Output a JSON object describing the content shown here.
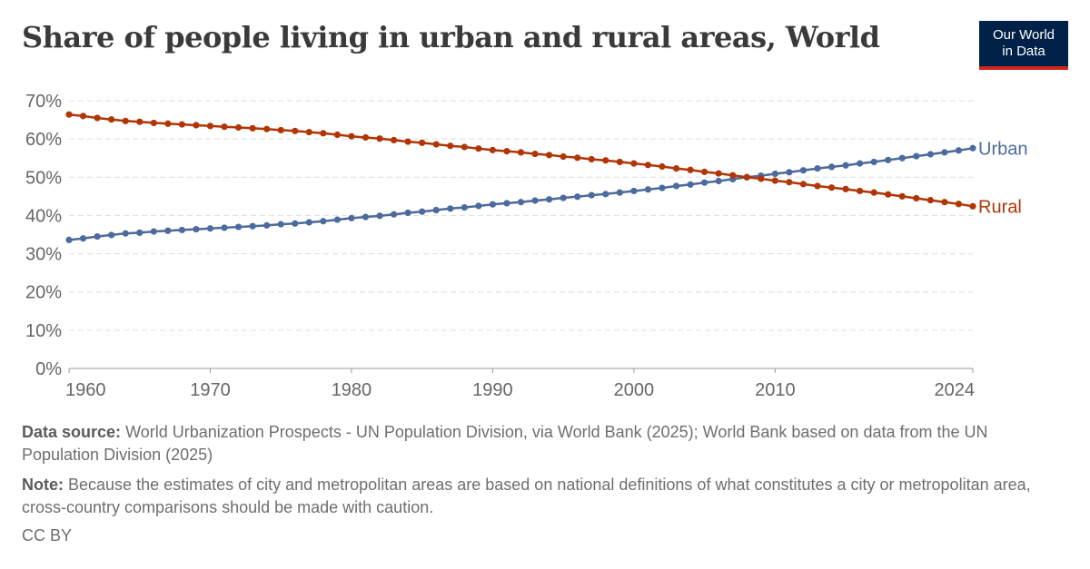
{
  "header": {
    "title": "Share of people living in urban and rural areas, World",
    "logo_line1": "Our World",
    "logo_line2": "in Data"
  },
  "footer": {
    "source_label": "Data source:",
    "source_text": "World Urbanization Prospects - UN Population Division, via World Bank (2025); World Bank based on data from the UN Population Division (2025)",
    "note_label": "Note:",
    "note_text": "Because the estimates of city and metropolitan areas are based on national definitions of what constitutes a city or metropolitan area, cross-country comparisons should be made with caution.",
    "license": "CC BY"
  },
  "colors": {
    "urban": "#4c6a9c",
    "rural": "#b13507",
    "grid": "#dddddd",
    "axis_text": "#666666"
  },
  "chart_data": {
    "type": "line",
    "x": [
      1960,
      1961,
      1962,
      1963,
      1964,
      1965,
      1966,
      1967,
      1968,
      1969,
      1970,
      1971,
      1972,
      1973,
      1974,
      1975,
      1976,
      1977,
      1978,
      1979,
      1980,
      1981,
      1982,
      1983,
      1984,
      1985,
      1986,
      1987,
      1988,
      1989,
      1990,
      1991,
      1992,
      1993,
      1994,
      1995,
      1996,
      1997,
      1998,
      1999,
      2000,
      2001,
      2002,
      2003,
      2004,
      2005,
      2006,
      2007,
      2008,
      2009,
      2010,
      2011,
      2012,
      2013,
      2014,
      2015,
      2016,
      2017,
      2018,
      2019,
      2020,
      2021,
      2022,
      2023,
      2024
    ],
    "series": [
      {
        "name": "Urban",
        "values": [
          33.6,
          34.0,
          34.5,
          34.9,
          35.3,
          35.5,
          35.8,
          36.0,
          36.2,
          36.4,
          36.6,
          36.8,
          37.0,
          37.2,
          37.4,
          37.7,
          37.9,
          38.2,
          38.5,
          38.9,
          39.3,
          39.6,
          39.9,
          40.3,
          40.7,
          41.0,
          41.4,
          41.8,
          42.1,
          42.5,
          42.9,
          43.2,
          43.5,
          43.9,
          44.2,
          44.6,
          44.9,
          45.3,
          45.6,
          46.0,
          46.4,
          46.8,
          47.2,
          47.7,
          48.1,
          48.6,
          49.0,
          49.5,
          50.0,
          50.4,
          50.9,
          51.3,
          51.8,
          52.3,
          52.7,
          53.1,
          53.6,
          54.0,
          54.5,
          55.0,
          55.5,
          56.0,
          56.5,
          57.0,
          57.6
        ]
      },
      {
        "name": "Rural",
        "values": [
          66.4,
          66.0,
          65.5,
          65.1,
          64.7,
          64.5,
          64.2,
          64.0,
          63.8,
          63.6,
          63.4,
          63.2,
          63.0,
          62.8,
          62.6,
          62.3,
          62.1,
          61.8,
          61.5,
          61.1,
          60.7,
          60.4,
          60.1,
          59.7,
          59.3,
          59.0,
          58.6,
          58.2,
          57.9,
          57.5,
          57.1,
          56.8,
          56.5,
          56.1,
          55.8,
          55.4,
          55.1,
          54.7,
          54.4,
          54.0,
          53.6,
          53.2,
          52.8,
          52.3,
          51.9,
          51.4,
          51.0,
          50.5,
          50.0,
          49.6,
          49.1,
          48.7,
          48.2,
          47.7,
          47.3,
          46.9,
          46.4,
          46.0,
          45.5,
          45.0,
          44.5,
          44.0,
          43.5,
          43.0,
          42.4
        ]
      }
    ],
    "ylim": [
      0,
      70
    ],
    "yticks": [
      0,
      10,
      20,
      30,
      40,
      50,
      60,
      70
    ],
    "ytick_labels": [
      "0%",
      "10%",
      "20%",
      "30%",
      "40%",
      "50%",
      "60%",
      "70%"
    ],
    "xticks": [
      1960,
      1970,
      1980,
      1990,
      2000,
      2010,
      2024
    ],
    "xtick_labels": [
      "1960",
      "1970",
      "1980",
      "1990",
      "2000",
      "2010",
      "2024"
    ],
    "grid": true,
    "legend": "end-of-line labels"
  }
}
